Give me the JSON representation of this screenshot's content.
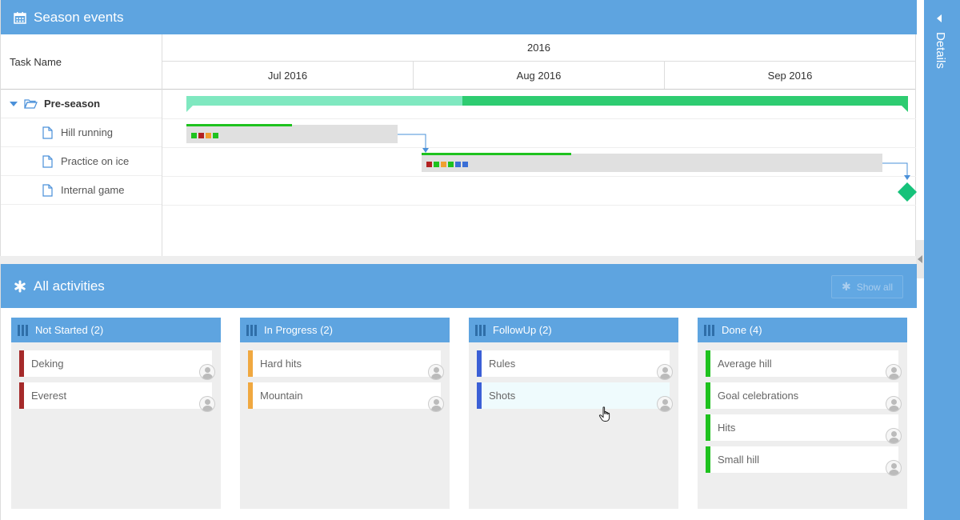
{
  "gantt": {
    "title": "Season events",
    "column_header": "Task Name",
    "year": "2016",
    "months": [
      "Jul 2016",
      "Aug 2016",
      "Sep 2016"
    ],
    "tasks": [
      {
        "name": "Pre-season",
        "type": "summary",
        "expanded": true
      },
      {
        "name": "Hill running",
        "type": "task"
      },
      {
        "name": "Practice on ice",
        "type": "task"
      },
      {
        "name": "Internal game",
        "type": "milestone"
      }
    ],
    "colors": {
      "summary_done": "#2ecc71",
      "summary_remaining": "#7fe8c0",
      "progress": "#1ec21e",
      "milestone": "#16c27a"
    },
    "hill_running_squares": [
      "#1ec21e",
      "#b22222",
      "#f0a030",
      "#1ec21e"
    ],
    "practice_squares": [
      "#b22222",
      "#1ec21e",
      "#f0a030",
      "#1ec21e",
      "#3b6fd6",
      "#3b6fd6"
    ]
  },
  "details": {
    "label": "Details"
  },
  "activities": {
    "title": "All activities",
    "show_all_label": "Show all",
    "columns": [
      {
        "title": "Not Started (2)",
        "cards": [
          {
            "label": "Deking",
            "color": "#a52a2a"
          },
          {
            "label": "Everest",
            "color": "#a52a2a"
          }
        ]
      },
      {
        "title": "In Progress (2)",
        "cards": [
          {
            "label": "Hard hits",
            "color": "#f0a840"
          },
          {
            "label": "Mountain",
            "color": "#f0a840"
          }
        ]
      },
      {
        "title": "FollowUp (2)",
        "cards": [
          {
            "label": "Rules",
            "color": "#3b5fd6"
          },
          {
            "label": "Shots",
            "color": "#3b5fd6"
          }
        ]
      },
      {
        "title": "Done (4)",
        "cards": [
          {
            "label": "Average hill",
            "color": "#1ec21e"
          },
          {
            "label": "Goal celebrations",
            "color": "#1ec21e"
          },
          {
            "label": "Hits",
            "color": "#1ec21e"
          },
          {
            "label": "Small hill",
            "color": "#1ec21e"
          }
        ]
      }
    ]
  }
}
